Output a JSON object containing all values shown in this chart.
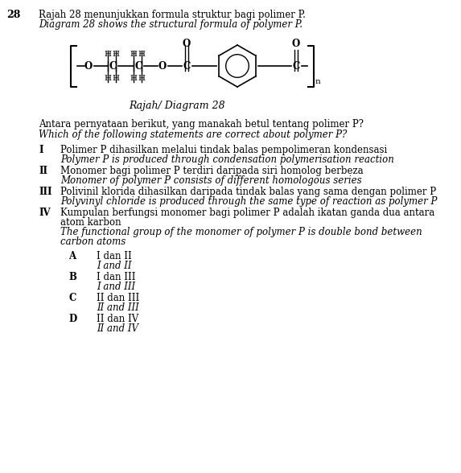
{
  "question_number": "28",
  "title_malay": "Rajah 28 menunjukkan formula struktur bagi polimer P.",
  "title_english": "Diagram 28 shows the structural formula of polymer P.",
  "diagram_label": "Rajah/ Diagram 28",
  "question_malay": "Antara pernyataan berikut, yang manakah betul tentang polimer P?",
  "question_english": "Which of the following statements are correct about polymer P?",
  "statements": [
    {
      "roman": "I",
      "malay": "Polimer P dihasilkan melalui tindak balas pempolimeran kondensasi",
      "english": "Polymer P is produced through condensation polymerisation reaction"
    },
    {
      "roman": "II",
      "malay": "Monomer bagi polimer P terdiri daripada siri homolog berbeza",
      "english": "Monomer of polymer P consists of different homologous series"
    },
    {
      "roman": "III",
      "malay": "Polivinil klorida dihasilkan daripada tindak balas yang sama dengan polimer P",
      "english": "Polyvinyl chloride is produced through the same type of reaction as polymer P"
    },
    {
      "roman": "IV",
      "malay": "Kumpulan berfungsi monomer bagi polimer P adalah ikatan ganda dua antara",
      "malay2": "atom karbon",
      "english": "The functional group of the monomer of polymer P is double bond between",
      "english2": "carbon atoms"
    }
  ],
  "options": [
    {
      "letter": "A",
      "malay": "I dan II",
      "english": "I and II"
    },
    {
      "letter": "B",
      "malay": "I dan III",
      "english": "I and III"
    },
    {
      "letter": "C",
      "malay": "II dan III",
      "english": "II and III"
    },
    {
      "letter": "D",
      "malay": "II dan IV",
      "english": "II and IV"
    }
  ],
  "bg_color": "#ffffff",
  "text_color": "#000000"
}
